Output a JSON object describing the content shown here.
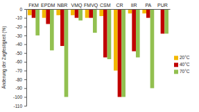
{
  "chart_data": {
    "type": "bar",
    "y_label": "Änderung der Zugfestigkeit (%)",
    "categories": [
      "FKM",
      "EPDM",
      "NBR",
      "VMQ",
      "FMVQ",
      "CSM",
      "CR",
      "IIR",
      "PA",
      "PUR"
    ],
    "series": [
      {
        "name": "20°C",
        "color": "#f2b800",
        "values": [
          -7,
          -10,
          -7,
          -7,
          -10,
          -8,
          -70,
          -5,
          -5,
          null
        ]
      },
      {
        "name": "40°C",
        "color": "#c00000",
        "values": [
          -10,
          -17,
          -42,
          -10,
          -10,
          -55,
          -100,
          -48,
          -10,
          -28
        ]
      },
      {
        "name": "70°C",
        "color": "#92c050",
        "values": [
          -30,
          -47,
          -100,
          -13,
          -27,
          -57,
          -100,
          -55,
          -90,
          -28
        ]
      }
    ],
    "ylim": [
      -110,
      0
    ],
    "yticks": [
      0,
      -10,
      -20,
      -30,
      -40,
      -50,
      -60,
      -70,
      -80,
      -90,
      -100,
      -110
    ],
    "grid": false,
    "legend": "right"
  }
}
